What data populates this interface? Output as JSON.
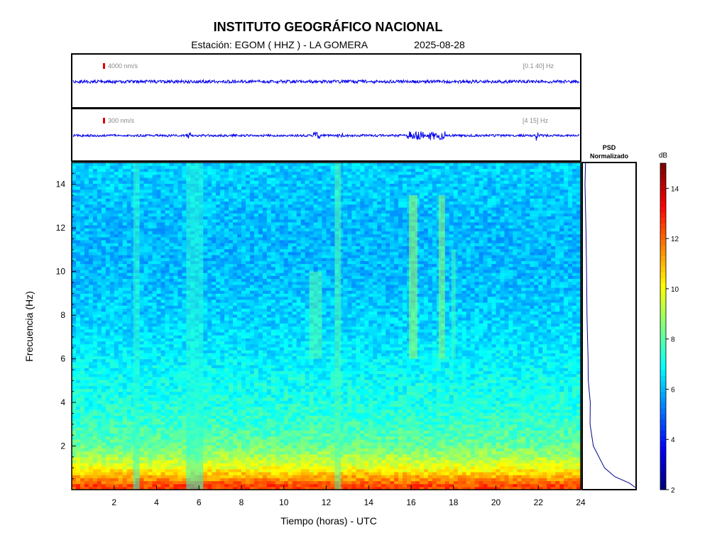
{
  "header": {
    "title": "INSTITUTO GEOGRÁFICO NACIONAL",
    "subtitle": "Estación:  EGOM ( HHZ ) - LA GOMERA",
    "date": "2025-08-28"
  },
  "traces": [
    {
      "scale_label": "4000 nm/s",
      "band_label": "[0.1 40] Hz",
      "color": "#0000ee",
      "scale_mark_color": "#dd0000"
    },
    {
      "scale_label": "300 nm/s",
      "band_label": "[4 15] Hz",
      "color": "#0000ee",
      "scale_mark_color": "#dd0000"
    }
  ],
  "psd_panel": {
    "title_line1": "PSD",
    "title_line2": "Normalizado",
    "line_color": "#00008b"
  },
  "colorbar": {
    "unit": "dB",
    "ticks": [
      2,
      4,
      6,
      8,
      10,
      12,
      14
    ],
    "range": [
      2,
      15
    ],
    "colormap": "jet"
  },
  "chart_data": {
    "type": "heatmap",
    "xlabel": "Tiempo (horas) - UTC",
    "ylabel": "Frecuencia  (Hz)",
    "xlim": [
      0,
      24
    ],
    "ylim": [
      0,
      15
    ],
    "xticks": [
      2,
      4,
      6,
      8,
      10,
      12,
      14,
      16,
      18,
      20,
      22,
      24
    ],
    "yticks": [
      2,
      4,
      6,
      8,
      10,
      12,
      14
    ],
    "background_db_profile": [
      {
        "freq_hz": 0.2,
        "db": 12.5
      },
      {
        "freq_hz": 0.5,
        "db": 11.5
      },
      {
        "freq_hz": 1,
        "db": 10
      },
      {
        "freq_hz": 1.5,
        "db": 9
      },
      {
        "freq_hz": 2,
        "db": 8.2
      },
      {
        "freq_hz": 3,
        "db": 7.6
      },
      {
        "freq_hz": 4,
        "db": 7.2
      },
      {
        "freq_hz": 5,
        "db": 7
      },
      {
        "freq_hz": 6,
        "db": 6.7
      },
      {
        "freq_hz": 8,
        "db": 6.3
      },
      {
        "freq_hz": 10,
        "db": 6
      },
      {
        "freq_hz": 12,
        "db": 6
      },
      {
        "freq_hz": 14,
        "db": 6.2
      },
      {
        "freq_hz": 15,
        "db": 6.3
      }
    ],
    "events": [
      {
        "t_start": 2.9,
        "t_end": 3.2,
        "f_min": 0,
        "f_max": 15,
        "db": 7.5
      },
      {
        "t_start": 5.4,
        "t_end": 6.2,
        "f_min": 0,
        "f_max": 15,
        "db": 7.4
      },
      {
        "t_start": 11.2,
        "t_end": 11.8,
        "f_min": 6,
        "f_max": 10,
        "db": 8
      },
      {
        "t_start": 12.4,
        "t_end": 12.7,
        "f_min": 0,
        "f_max": 15,
        "db": 8
      },
      {
        "t_start": 15.9,
        "t_end": 16.3,
        "f_min": 6,
        "f_max": 13.5,
        "db": 9
      },
      {
        "t_start": 17.3,
        "t_end": 17.6,
        "f_min": 6,
        "f_max": 13.5,
        "db": 8.8
      },
      {
        "t_start": 17.9,
        "t_end": 18.1,
        "f_min": 6,
        "f_max": 11,
        "db": 7.8
      }
    ],
    "psd_normalized": [
      {
        "freq_hz": 0.1,
        "value": 1.0
      },
      {
        "freq_hz": 0.3,
        "value": 0.9
      },
      {
        "freq_hz": 0.6,
        "value": 0.6
      },
      {
        "freq_hz": 1,
        "value": 0.4
      },
      {
        "freq_hz": 2,
        "value": 0.18
      },
      {
        "freq_hz": 3,
        "value": 0.14
      },
      {
        "freq_hz": 4,
        "value": 0.12
      },
      {
        "freq_hz": 5,
        "value": 0.1
      },
      {
        "freq_hz": 6,
        "value": 0.09
      },
      {
        "freq_hz": 7,
        "value": 0.075
      },
      {
        "freq_hz": 8,
        "value": 0.07
      },
      {
        "freq_hz": 10,
        "value": 0.06
      },
      {
        "freq_hz": 12,
        "value": 0.05
      },
      {
        "freq_hz": 14,
        "value": 0.04
      },
      {
        "freq_hz": 15,
        "value": 0.04
      }
    ]
  }
}
